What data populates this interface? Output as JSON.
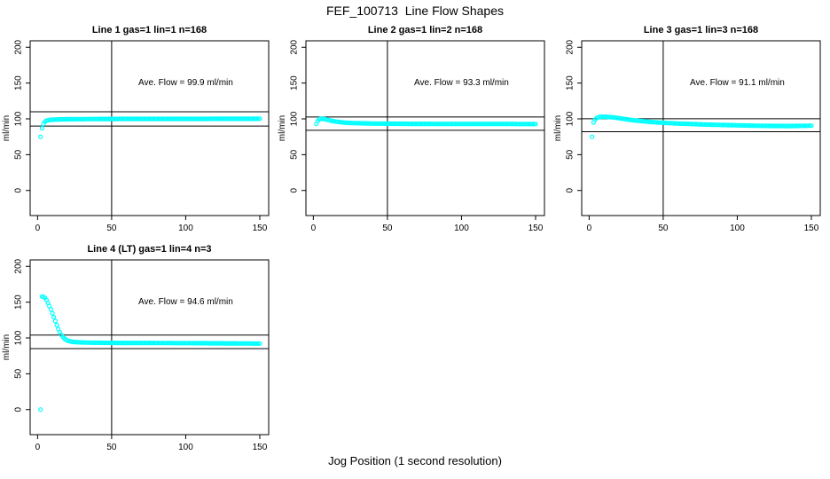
{
  "figure": {
    "title": "FEF_100713  Line Flow Shapes",
    "xlabel": "Jog Position (1 second resolution)",
    "background": "#FFFFFF",
    "axis_color": "#000000",
    "marker": {
      "shape": "open-circle",
      "color": "#00FFFF"
    }
  },
  "chart_data": [
    {
      "type": "scatter",
      "title": "Line 1 gas=1 lin=1 n=168",
      "ylabel": "ml/min",
      "annotation": "Ave. Flow =  99.9  ml/min",
      "ave_flow_ml_min": 99.9,
      "n": 168,
      "x_ticks": [
        0,
        50,
        100,
        150
      ],
      "y_ticks": [
        0,
        50,
        100,
        150,
        200
      ],
      "xlim": [
        -5,
        156
      ],
      "ylim": [
        -35,
        209
      ],
      "vline_x": 50,
      "hlines": [
        109.9,
        89.9
      ],
      "annotation_pos": [
        100,
        150
      ],
      "outlier_points": [
        [
          2,
          75
        ]
      ],
      "trace_step": 1,
      "trace_keypoints": [
        [
          3,
          87
        ],
        [
          4,
          93
        ],
        [
          5,
          96
        ],
        [
          6,
          97.5
        ],
        [
          8,
          98.5
        ],
        [
          10,
          99
        ],
        [
          15,
          99.3
        ],
        [
          25,
          99.6
        ],
        [
          40,
          99.8
        ],
        [
          60,
          100
        ],
        [
          100,
          100
        ],
        [
          150,
          100.2
        ]
      ]
    },
    {
      "type": "scatter",
      "title": "Line 2 gas=1 lin=2 n=168",
      "ylabel": "ml/min",
      "annotation": "Ave. Flow =  93.3  ml/min",
      "ave_flow_ml_min": 93.3,
      "n": 168,
      "x_ticks": [
        0,
        50,
        100,
        150
      ],
      "y_ticks": [
        0,
        50,
        100,
        150,
        200
      ],
      "xlim": [
        -5,
        156
      ],
      "ylim": [
        -35,
        209
      ],
      "vline_x": 50,
      "hlines": [
        102.6,
        84.0
      ],
      "annotation_pos": [
        100,
        150
      ],
      "outlier_points": [],
      "trace_step": 1,
      "trace_keypoints": [
        [
          2,
          93
        ],
        [
          3,
          97
        ],
        [
          4,
          99.5
        ],
        [
          5,
          100
        ],
        [
          7,
          100
        ],
        [
          9,
          99
        ],
        [
          11,
          98
        ],
        [
          13,
          97
        ],
        [
          16,
          96
        ],
        [
          20,
          95
        ],
        [
          25,
          94.3
        ],
        [
          30,
          94
        ],
        [
          40,
          93.5
        ],
        [
          55,
          93.2
        ],
        [
          80,
          93
        ],
        [
          120,
          93
        ],
        [
          150,
          92.8
        ]
      ]
    },
    {
      "type": "scatter",
      "title": "Line 3 gas=1 lin=3 n=168",
      "ylabel": "ml/min",
      "annotation": "Ave. Flow =  91.1  ml/min",
      "ave_flow_ml_min": 91.1,
      "n": 168,
      "x_ticks": [
        0,
        50,
        100,
        150
      ],
      "y_ticks": [
        0,
        50,
        100,
        150,
        200
      ],
      "xlim": [
        -5,
        156
      ],
      "ylim": [
        -35,
        209
      ],
      "vline_x": 50,
      "hlines": [
        100.2,
        82.0
      ],
      "annotation_pos": [
        100,
        150
      ],
      "outlier_points": [
        [
          2,
          75
        ]
      ],
      "trace_step": 1,
      "trace_keypoints": [
        [
          3,
          95
        ],
        [
          4,
          99
        ],
        [
          5,
          101
        ],
        [
          6,
          102
        ],
        [
          8,
          103
        ],
        [
          11,
          103
        ],
        [
          14,
          102.5
        ],
        [
          17,
          102
        ],
        [
          20,
          101
        ],
        [
          25,
          99.5
        ],
        [
          30,
          98
        ],
        [
          35,
          97
        ],
        [
          40,
          96
        ],
        [
          50,
          94.5
        ],
        [
          60,
          93.5
        ],
        [
          70,
          92.8
        ],
        [
          80,
          92
        ],
        [
          90,
          91.5
        ],
        [
          100,
          91
        ],
        [
          110,
          90.6
        ],
        [
          120,
          90.2
        ],
        [
          135,
          90
        ],
        [
          150,
          90.5
        ]
      ]
    },
    {
      "type": "scatter",
      "title": "Line 4 (LT) gas=1 lin=4 n=3",
      "ylabel": "ml/min",
      "annotation": "Ave. Flow =  94.6  ml/min",
      "ave_flow_ml_min": 94.6,
      "n": 3,
      "x_ticks": [
        0,
        50,
        100,
        150
      ],
      "y_ticks": [
        0,
        50,
        100,
        150,
        200
      ],
      "xlim": [
        -5,
        156
      ],
      "ylim": [
        -35,
        209
      ],
      "vline_x": 50,
      "hlines": [
        104.1,
        85.1
      ],
      "annotation_pos": [
        100,
        150
      ],
      "outlier_points": [
        [
          2,
          0
        ]
      ],
      "trace_step": 1,
      "trace_keypoints": [
        [
          3,
          158
        ],
        [
          4,
          157.5
        ],
        [
          5,
          156
        ],
        [
          6,
          153
        ],
        [
          7,
          149
        ],
        [
          8,
          144.5
        ],
        [
          9,
          140
        ],
        [
          10,
          134.5
        ],
        [
          11,
          129
        ],
        [
          12,
          123.5
        ],
        [
          13,
          118
        ],
        [
          14,
          112.5
        ],
        [
          15,
          108
        ],
        [
          16,
          104.5
        ],
        [
          17,
          101.5
        ],
        [
          18,
          99.5
        ],
        [
          19,
          98
        ],
        [
          20,
          96.5
        ],
        [
          22,
          95.3
        ],
        [
          24,
          94.5
        ],
        [
          27,
          94
        ],
        [
          32,
          93.6
        ],
        [
          40,
          93.3
        ],
        [
          55,
          93.1
        ],
        [
          80,
          93
        ],
        [
          110,
          92.7
        ],
        [
          150,
          92.2
        ]
      ]
    }
  ]
}
